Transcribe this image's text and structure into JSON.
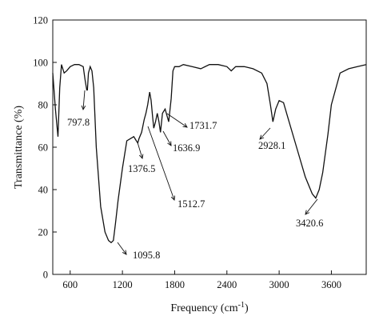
{
  "chart_data": {
    "type": "line",
    "xlabel": "Frequency (cm",
    "xlabel_superscript": "-1",
    "xlabel_suffix": ")",
    "ylabel": "Transmittance (%)",
    "xlim": [
      400,
      4000
    ],
    "ylim": [
      0,
      120
    ],
    "x_ticks": [
      600,
      1200,
      1800,
      2400,
      3000,
      3600
    ],
    "y_ticks": [
      0,
      20,
      40,
      60,
      80,
      100,
      120
    ],
    "grid": false,
    "series": [
      {
        "x": [
          400,
          430,
          460,
          480,
          500,
          530,
          560,
          600,
          650,
          700,
          750,
          770,
          790,
          798,
          810,
          830,
          850,
          870,
          900,
          950,
          1000,
          1040,
          1070,
          1095.8,
          1120,
          1150,
          1200,
          1250,
          1290,
          1330,
          1360,
          1376.5,
          1390,
          1420,
          1450,
          1470,
          1490,
          1512.7,
          1530,
          1545,
          1560,
          1580,
          1600,
          1620,
          1636.9,
          1660,
          1690,
          1731.7,
          1760,
          1780,
          1800,
          1820,
          1850,
          1900,
          2000,
          2100,
          2200,
          2300,
          2400,
          2450,
          2500,
          2600,
          2700,
          2800,
          2860,
          2900,
          2928.1,
          2960,
          3000,
          3050,
          3100,
          3200,
          3300,
          3380,
          3420.6,
          3460,
          3500,
          3560,
          3600,
          3700,
          3800,
          3900,
          4000
        ],
        "y": [
          95,
          78,
          65,
          88,
          99,
          95,
          96,
          98,
          99,
          99,
          98,
          92,
          87,
          87,
          95,
          98,
          96,
          88,
          60,
          32,
          20,
          16,
          15,
          16,
          24,
          35,
          50,
          63,
          64,
          65,
          63,
          62,
          64,
          67,
          73,
          76,
          80,
          86,
          82,
          75,
          69,
          72,
          76,
          72,
          67,
          76,
          78,
          72,
          83,
          96,
          98,
          98,
          98,
          99,
          98,
          97,
          99,
          99,
          98,
          96,
          98,
          98,
          97,
          95,
          90,
          80,
          72,
          78,
          82,
          81,
          74,
          60,
          46,
          38,
          36,
          40,
          48,
          66,
          80,
          95,
          97,
          98,
          99
        ]
      }
    ],
    "annotations": [
      {
        "label": "797.8"
      },
      {
        "label": "1095.8"
      },
      {
        "label": "1376.5"
      },
      {
        "label": "1512.7"
      },
      {
        "label": "1636.9"
      },
      {
        "label": "1731.7"
      },
      {
        "label": "2928.1"
      },
      {
        "label": "3420.6"
      }
    ]
  }
}
